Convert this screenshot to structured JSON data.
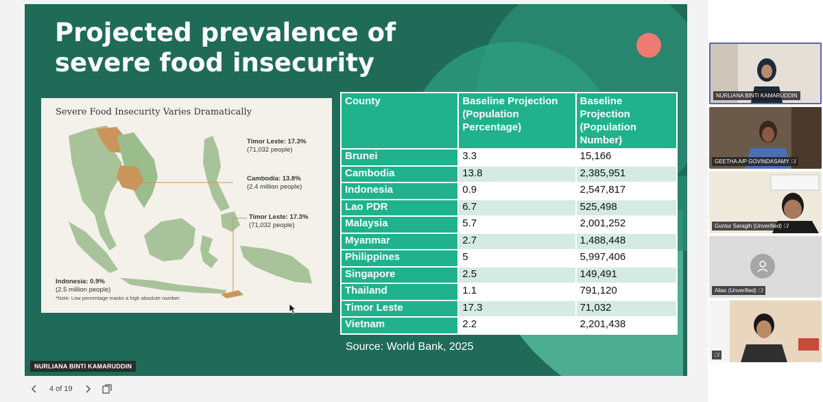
{
  "slide": {
    "title": "Projected prevalence of severe food insecurity",
    "map": {
      "heading": "Severe Food Insecurity Varies Dramatically",
      "labels": [
        {
          "name": "Timor Leste: 17.3%",
          "detail": "(71,032 people)"
        },
        {
          "name": "Cambodia: 13.8%",
          "detail": "(2.4 million people)"
        },
        {
          "name": "Timor Leste: 17.3%",
          "detail": "(71,032 people)"
        },
        {
          "name": "Indonesia: 0.9%",
          "detail": "(2.5 million people)"
        }
      ],
      "note": "*Note: Low percentage masks a high absolute number."
    },
    "table": {
      "headers": [
        "County",
        "Baseline Projection (Population Percentage)",
        "Baseline Projection (Population Number)"
      ],
      "rows": [
        [
          "Brunei",
          "3.3",
          "15,166"
        ],
        [
          "Cambodia",
          "13.8",
          "2,385,951"
        ],
        [
          "Indonesia",
          "0.9",
          "2,547,817"
        ],
        [
          "Lao PDR",
          "6.7",
          "525,498"
        ],
        [
          "Malaysia",
          "5.7",
          "2,001,252"
        ],
        [
          "Myanmar",
          "2.7",
          "1,488,448"
        ],
        [
          "Philippines",
          "5",
          "5,997,406"
        ],
        [
          "Singapore",
          "2.5",
          "149,491"
        ],
        [
          "Thailand",
          "1.1",
          "791,120"
        ],
        [
          "Timor Leste",
          "17.3",
          "71,032"
        ],
        [
          "Vietnam",
          "2.2",
          "2,201,438"
        ]
      ]
    },
    "source": "Source: World Bank, 2025"
  },
  "presenter_tag": "NURLIANA BINTI KAMARUDDIN",
  "nav": {
    "prev_icon": "chevron-left-icon",
    "page_indicator": "4 of 19",
    "next_icon": "chevron-right-icon",
    "slides_icon": "slides-overview-icon"
  },
  "participants": [
    {
      "name": "NURLIANA BINTI KAMARUDDIN",
      "muted": false,
      "active": true
    },
    {
      "name": "GEETHA A/P GOVINDASAMY",
      "muted": true,
      "active": false
    },
    {
      "name": "Guntur Saragih (Unverified)",
      "muted": true,
      "active": false
    },
    {
      "name": "Alias (Unverified)",
      "muted": true,
      "active": false
    },
    {
      "name": "",
      "muted": true,
      "active": false
    }
  ],
  "colors": {
    "slide_bg": "#1f6b58",
    "table_header": "#1fb28c",
    "row_alt": "#d3ebe2",
    "accent_dot": "#ee7b74"
  }
}
